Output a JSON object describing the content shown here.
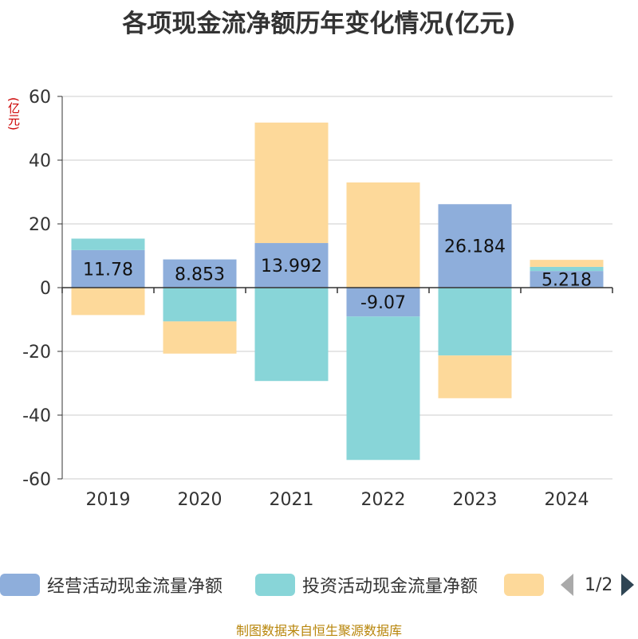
{
  "chart_data": {
    "type": "bar",
    "stacked": true,
    "title": "各项现金流净额历年变化情况(亿元)",
    "unit_label": "(亿元)",
    "categories": [
      "2019",
      "2020",
      "2021",
      "2022",
      "2023",
      "2024"
    ],
    "ylim": [
      -60,
      60
    ],
    "yticks": [
      60,
      40,
      20,
      0,
      -20,
      -40,
      -60
    ],
    "grid": true,
    "legend_position": "bottom",
    "series": [
      {
        "name": "经营活动现金流量净额",
        "color": "#8eaedb",
        "values": [
          11.78,
          8.853,
          13.992,
          -9.07,
          26.184,
          5.218
        ],
        "labels": [
          "11.78",
          "8.853",
          "13.992",
          "-9.07",
          "26.184",
          "5.218"
        ]
      },
      {
        "name": "投资活动现金流量净额",
        "color": "#88d5d8",
        "values": [
          3.6,
          -10.6,
          -29.3,
          -45.0,
          -21.3,
          1.3
        ]
      },
      {
        "name": "",
        "color": "#fdd99a",
        "values": [
          -8.6,
          -10.1,
          37.8,
          33.0,
          -13.4,
          2.2
        ]
      }
    ]
  },
  "legend": {
    "items": [
      {
        "label": "经营活动现金流量净额",
        "color": "#8eaedb"
      },
      {
        "label": "投资活动现金流量净额",
        "color": "#88d5d8"
      },
      {
        "label": "",
        "color": "#fdd99a"
      }
    ],
    "page": "1/2"
  },
  "source": "制图数据来自恒生聚源数据库"
}
